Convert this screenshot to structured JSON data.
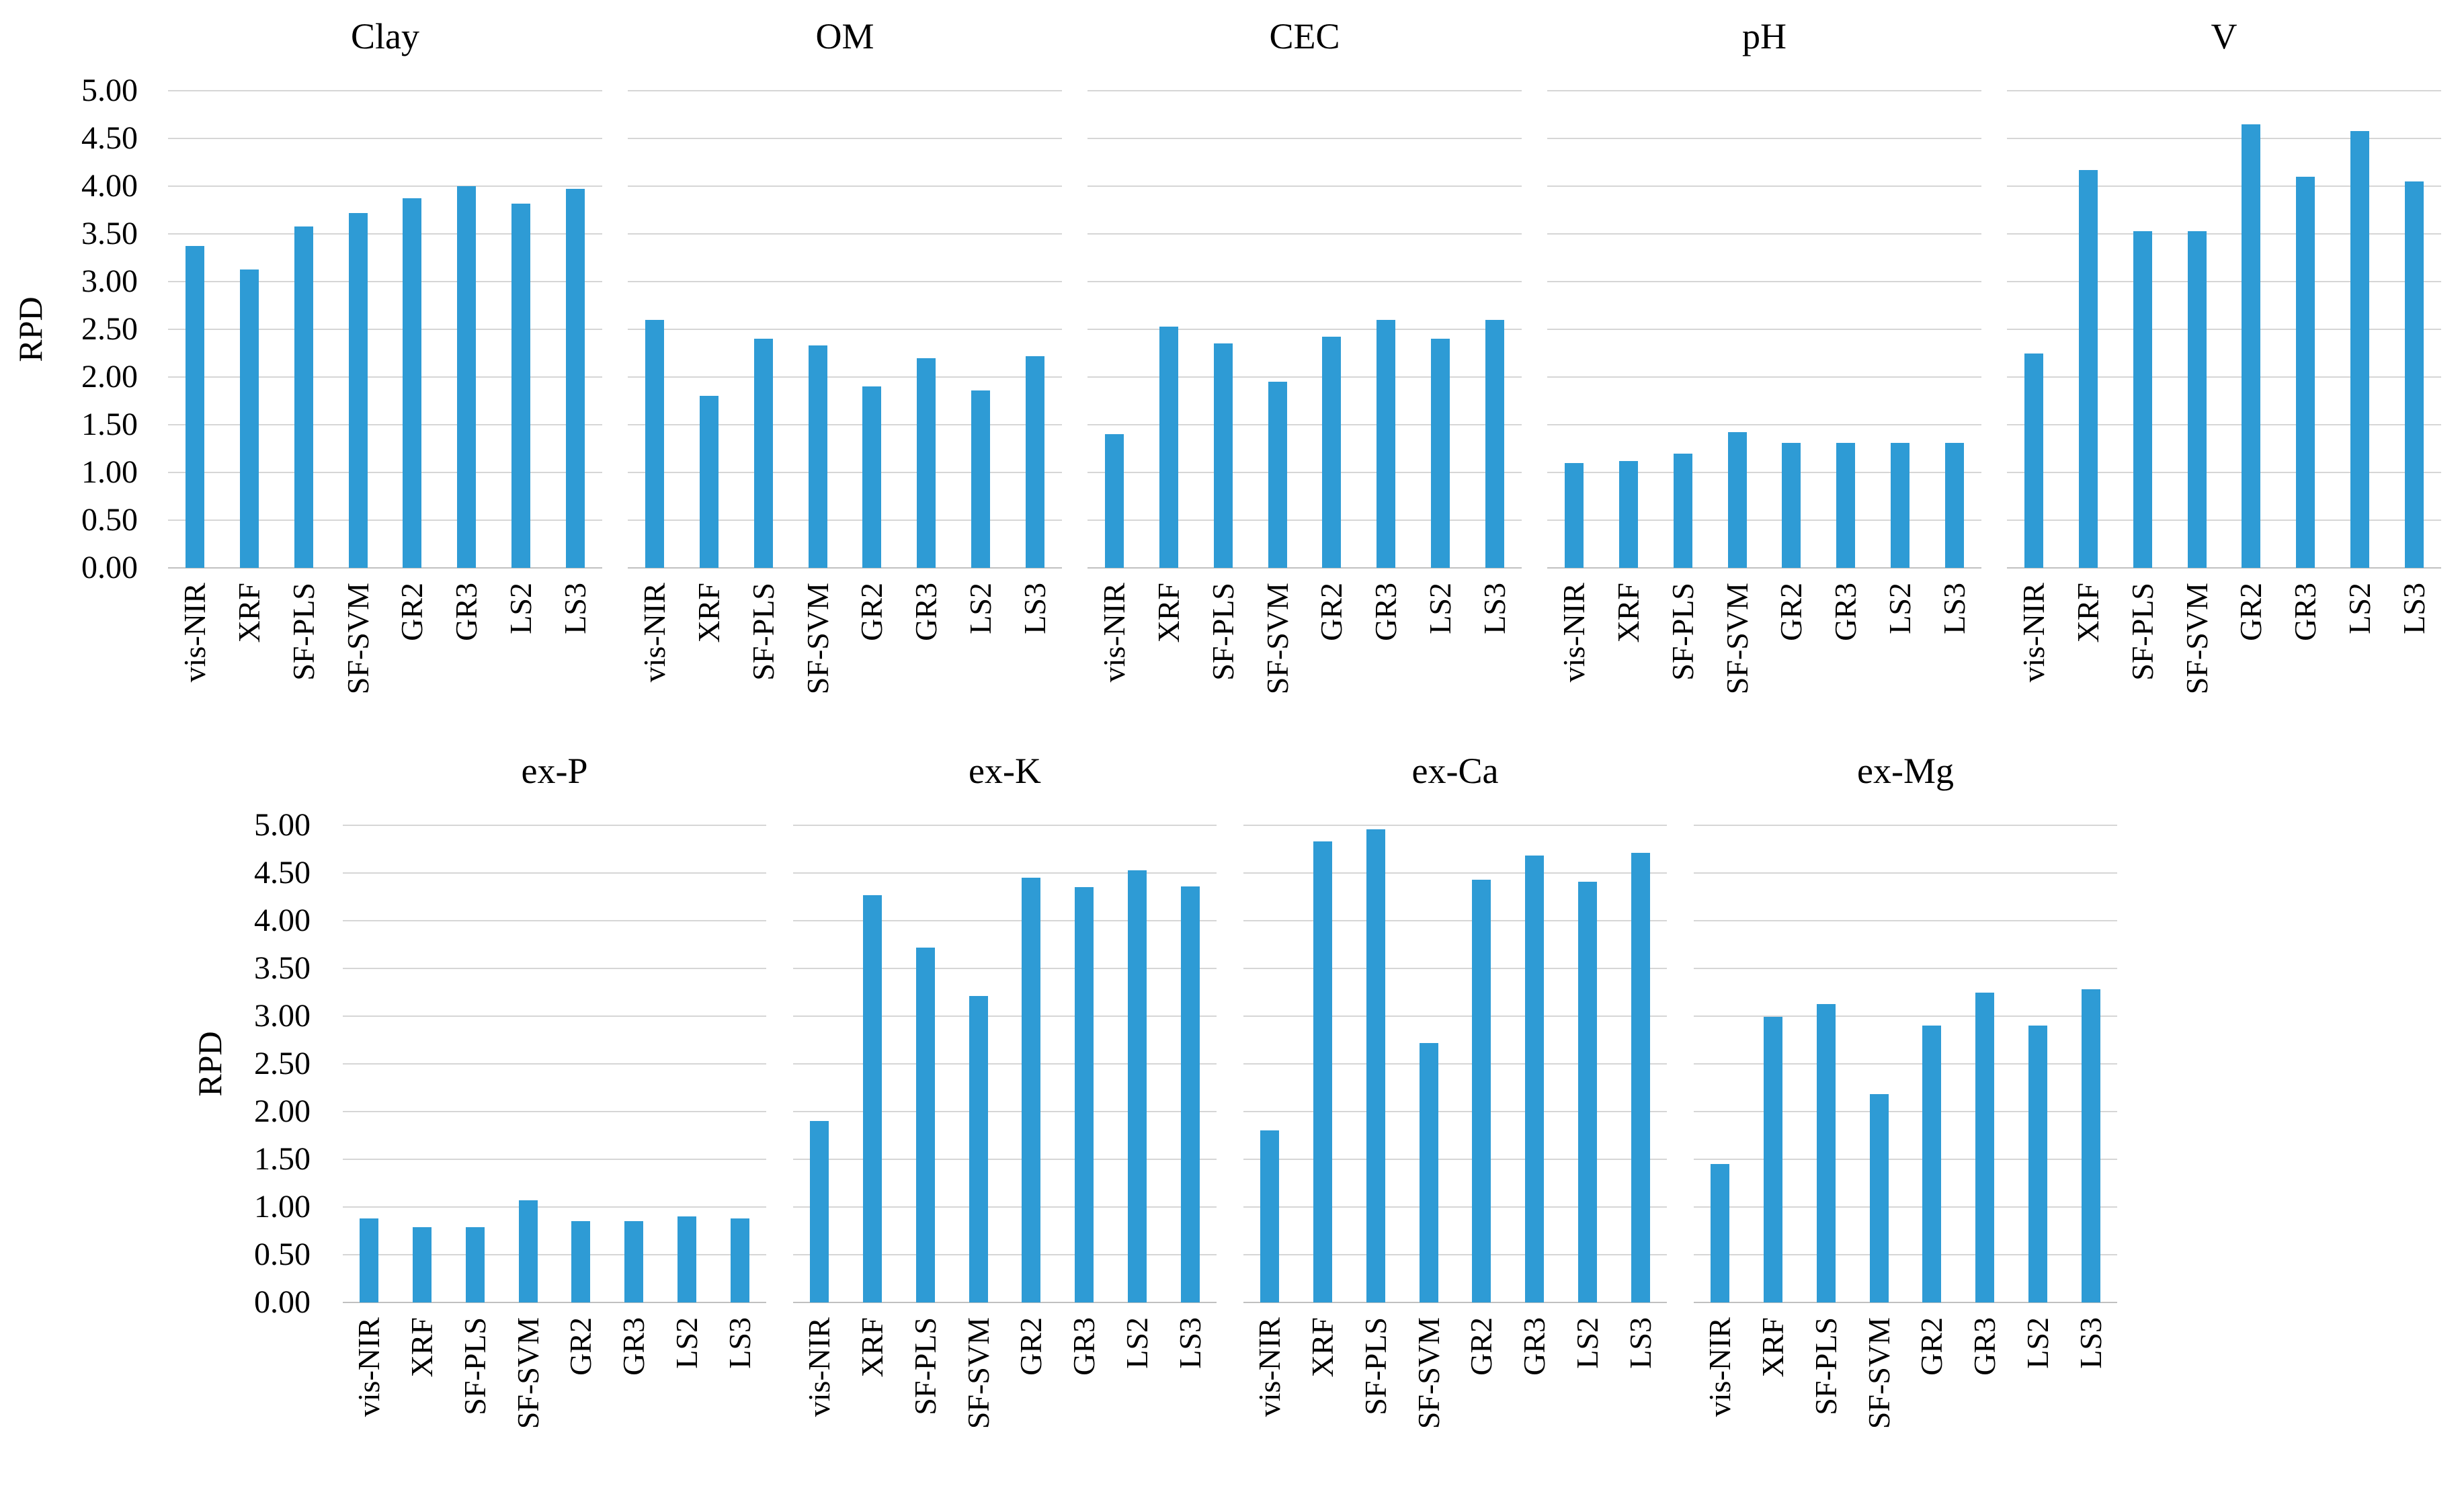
{
  "figure": {
    "ylabel": "RPD",
    "y_ticks": [
      "5.00",
      "4.50",
      "4.00",
      "3.50",
      "3.00",
      "2.50",
      "2.00",
      "1.50",
      "1.00",
      "0.50",
      "0.00"
    ],
    "categories": [
      "vis-NIR",
      "XRF",
      "SF-PLS",
      "SF-SVM",
      "GR2",
      "GR3",
      "LS2",
      "LS3"
    ],
    "bar_color": "#2E9BD5",
    "gridline_color": "#D6D6D6",
    "axis_color": "#C0C0C0"
  },
  "chart_data": [
    {
      "type": "bar",
      "title": "Clay",
      "ylabel": "RPD",
      "ylim": [
        0,
        5
      ],
      "grid": true,
      "categories": [
        "vis-NIR",
        "XRF",
        "SF-PLS",
        "SF-SVM",
        "GR2",
        "GR3",
        "LS2",
        "LS3"
      ],
      "values": [
        3.37,
        3.13,
        3.58,
        3.72,
        3.87,
        4.0,
        3.82,
        3.97
      ]
    },
    {
      "type": "bar",
      "title": "OM",
      "ylabel": "RPD",
      "ylim": [
        0,
        5
      ],
      "grid": true,
      "categories": [
        "vis-NIR",
        "XRF",
        "SF-PLS",
        "SF-SVM",
        "GR2",
        "GR3",
        "LS2",
        "LS3"
      ],
      "values": [
        2.6,
        1.8,
        2.4,
        2.33,
        1.9,
        2.2,
        1.86,
        2.22
      ]
    },
    {
      "type": "bar",
      "title": "CEC",
      "ylabel": "RPD",
      "ylim": [
        0,
        5
      ],
      "grid": true,
      "categories": [
        "vis-NIR",
        "XRF",
        "SF-PLS",
        "SF-SVM",
        "GR2",
        "GR3",
        "LS2",
        "LS3"
      ],
      "values": [
        1.4,
        2.53,
        2.35,
        1.95,
        2.42,
        2.6,
        2.4,
        2.6
      ]
    },
    {
      "type": "bar",
      "title": "pH",
      "ylabel": "RPD",
      "ylim": [
        0,
        5
      ],
      "grid": true,
      "categories": [
        "vis-NIR",
        "XRF",
        "SF-PLS",
        "SF-SVM",
        "GR2",
        "GR3",
        "LS2",
        "LS3"
      ],
      "values": [
        1.1,
        1.12,
        1.2,
        1.42,
        1.31,
        1.31,
        1.31,
        1.31
      ]
    },
    {
      "type": "bar",
      "title": "V",
      "ylabel": "RPD",
      "ylim": [
        0,
        5
      ],
      "grid": true,
      "categories": [
        "vis-NIR",
        "XRF",
        "SF-PLS",
        "SF-SVM",
        "GR2",
        "GR3",
        "LS2",
        "LS3"
      ],
      "values": [
        2.25,
        4.17,
        3.53,
        3.53,
        4.65,
        4.1,
        4.58,
        4.05
      ]
    },
    {
      "type": "bar",
      "title": "ex-P",
      "ylabel": "RPD",
      "ylim": [
        0,
        5
      ],
      "grid": true,
      "categories": [
        "vis-NIR",
        "XRF",
        "SF-PLS",
        "SF-SVM",
        "GR2",
        "GR3",
        "LS2",
        "LS3"
      ],
      "values": [
        0.88,
        0.79,
        0.79,
        1.07,
        0.85,
        0.85,
        0.9,
        0.88
      ]
    },
    {
      "type": "bar",
      "title": "ex-K",
      "ylabel": "RPD",
      "ylim": [
        0,
        5
      ],
      "grid": true,
      "categories": [
        "vis-NIR",
        "XRF",
        "SF-PLS",
        "SF-SVM",
        "GR2",
        "GR3",
        "LS2",
        "LS3"
      ],
      "values": [
        1.9,
        4.27,
        3.72,
        3.21,
        4.45,
        4.35,
        4.53,
        4.36
      ]
    },
    {
      "type": "bar",
      "title": "ex-Ca",
      "ylabel": "RPD",
      "ylim": [
        0,
        5
      ],
      "grid": true,
      "categories": [
        "vis-NIR",
        "XRF",
        "SF-PLS",
        "SF-SVM",
        "GR2",
        "GR3",
        "LS2",
        "LS3"
      ],
      "values": [
        1.8,
        4.83,
        4.96,
        2.72,
        4.43,
        4.68,
        4.41,
        4.71
      ]
    },
    {
      "type": "bar",
      "title": "ex-Mg",
      "ylabel": "RPD",
      "ylim": [
        0,
        5
      ],
      "grid": true,
      "categories": [
        "vis-NIR",
        "XRF",
        "SF-PLS",
        "SF-SVM",
        "GR2",
        "GR3",
        "LS2",
        "LS3"
      ],
      "values": [
        1.45,
        2.99,
        3.13,
        2.18,
        2.9,
        3.25,
        2.9,
        3.28
      ]
    }
  ]
}
